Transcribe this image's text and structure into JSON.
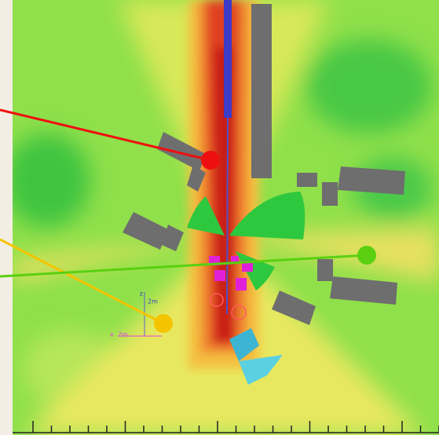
{
  "gizmo": {
    "z_label": "z",
    "z_scale": "2m",
    "x_label": "x",
    "x_scale": "2m"
  }
}
